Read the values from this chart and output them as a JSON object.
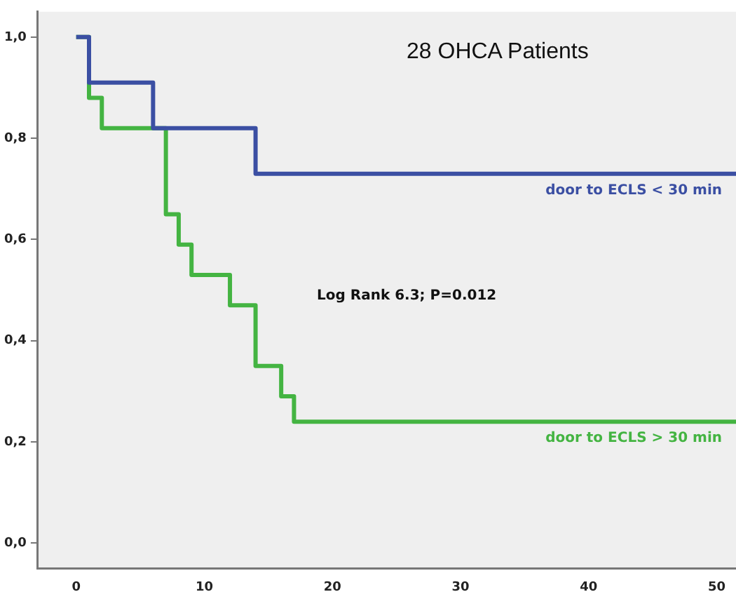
{
  "chart_data": {
    "type": "step",
    "xlim": [
      -3,
      51.5
    ],
    "ylim": [
      -0.05,
      1.05
    ],
    "xticks": [
      0,
      10,
      20,
      30,
      40,
      50
    ],
    "yticks": [
      {
        "value": 0,
        "label": "0,0"
      },
      {
        "value": 0.2,
        "label": "0,2"
      },
      {
        "value": 0.4,
        "label": "0,4"
      },
      {
        "value": 0.6,
        "label": "0,6"
      },
      {
        "value": 0.8,
        "label": "0,8"
      },
      {
        "value": 1,
        "label": "1,0"
      }
    ],
    "series": [
      {
        "name": "door to ECLS < 30 min",
        "color": "#3b4fa3",
        "x": [
          0,
          1,
          6,
          14,
          51.5
        ],
        "values": [
          1,
          0.91,
          0.82,
          0.73,
          0.73
        ]
      },
      {
        "name": "door to ECLS > 30 min",
        "color": "#44b442",
        "x": [
          0,
          1,
          2,
          7,
          8,
          9,
          12,
          14,
          16,
          17,
          51.5
        ],
        "values": [
          1,
          0.88,
          0.82,
          0.65,
          0.59,
          0.53,
          0.47,
          0.35,
          0.29,
          0.24,
          0.24
        ]
      }
    ],
    "annotations": [
      "28 OHCA Patients",
      "Log Rank 6.3; P=0.012"
    ],
    "grid": false
  }
}
